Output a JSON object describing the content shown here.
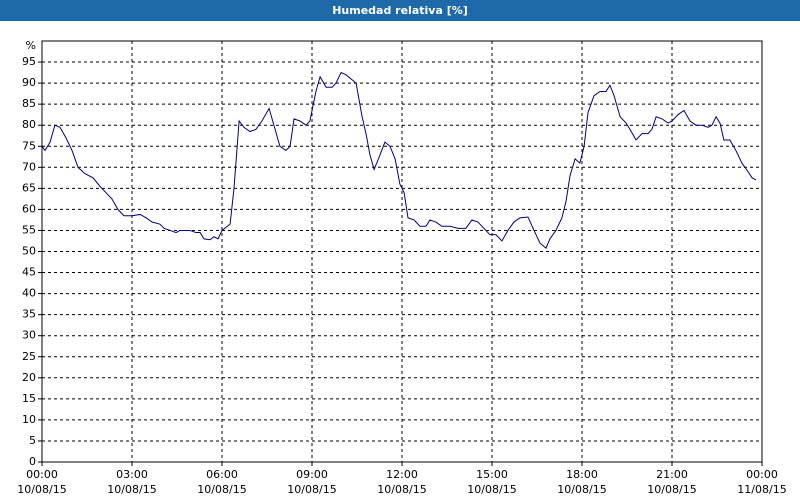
{
  "chart_data": {
    "type": "line",
    "title": "Humedad relativa [%]",
    "y_unit": "%",
    "xlim": [
      0,
      24
    ],
    "ylim": [
      0,
      100
    ],
    "xticks": [
      {
        "value": 0,
        "label": "00:00"
      },
      {
        "value": 3,
        "label": "03:00"
      },
      {
        "value": 6,
        "label": "06:00"
      },
      {
        "value": 9,
        "label": "09:00"
      },
      {
        "value": 12,
        "label": "12:00"
      },
      {
        "value": 15,
        "label": "15:00"
      },
      {
        "value": 18,
        "label": "18:00"
      },
      {
        "value": 21,
        "label": "21:00"
      },
      {
        "value": 24,
        "label": "00:00"
      }
    ],
    "xtick_dates": [
      "10/08/15",
      "10/08/15",
      "10/08/15",
      "10/08/15",
      "10/08/15",
      "10/08/15",
      "10/08/15",
      "10/08/15",
      "11/08/15"
    ],
    "yticks": [
      0,
      5,
      10,
      15,
      20,
      25,
      30,
      35,
      40,
      45,
      50,
      55,
      60,
      65,
      70,
      75,
      80,
      85,
      90,
      95
    ],
    "grid": true,
    "series": [
      {
        "name": "Humedad relativa",
        "color": "#000080",
        "x": [
          0,
          0.1,
          0.27,
          0.43,
          0.6,
          0.8,
          1.0,
          1.2,
          1.43,
          1.7,
          1.93,
          2.13,
          2.33,
          2.53,
          2.73,
          3.0,
          3.27,
          3.47,
          3.67,
          3.93,
          4.07,
          4.27,
          4.47,
          4.6,
          4.93,
          5.13,
          5.27,
          5.4,
          5.6,
          5.73,
          5.87,
          6.0,
          6.27,
          6.4,
          6.57,
          6.73,
          6.93,
          7.13,
          7.33,
          7.57,
          7.73,
          7.93,
          8.13,
          8.27,
          8.4,
          8.6,
          8.8,
          8.93,
          9.13,
          9.27,
          9.47,
          9.67,
          9.8,
          9.97,
          10.13,
          10.3,
          10.47,
          10.67,
          10.8,
          10.93,
          11.07,
          11.27,
          11.43,
          11.6,
          11.77,
          11.93,
          12.07,
          12.2,
          12.4,
          12.6,
          12.8,
          12.93,
          13.13,
          13.33,
          13.6,
          13.87,
          14.13,
          14.33,
          14.53,
          14.73,
          14.93,
          15.13,
          15.33,
          15.53,
          15.73,
          15.93,
          16.2,
          16.4,
          16.6,
          16.8,
          16.93,
          17.13,
          17.33,
          17.47,
          17.6,
          17.77,
          17.93,
          18.07,
          18.2,
          18.4,
          18.6,
          18.8,
          18.93,
          19.07,
          19.27,
          19.47,
          19.6,
          19.8,
          20.0,
          20.2,
          20.33,
          20.47,
          20.67,
          20.87,
          21.0,
          21.2,
          21.4,
          21.6,
          21.8,
          22.0,
          22.2,
          22.33,
          22.47,
          22.6,
          22.73,
          22.93,
          23.13,
          23.33,
          23.53,
          23.67,
          23.8
        ],
        "values": [
          75,
          74,
          76,
          80,
          79.5,
          77,
          74,
          70,
          68.5,
          67.5,
          65.5,
          64,
          62.5,
          60,
          58.5,
          58.5,
          58.8,
          58,
          57,
          56.5,
          55.5,
          55,
          54.5,
          55,
          55,
          54.5,
          54.5,
          53,
          52.8,
          53.5,
          53,
          55,
          56.5,
          65,
          81,
          79.5,
          78.5,
          79,
          81,
          84,
          80,
          75,
          74,
          75,
          81.5,
          81,
          80,
          81,
          88,
          91.5,
          89,
          89,
          90,
          92.5,
          92,
          91,
          90,
          82,
          78,
          73,
          69.5,
          73,
          76,
          75,
          72,
          66,
          64,
          58,
          57.5,
          56,
          56,
          57.5,
          57,
          56,
          56,
          55.5,
          55.5,
          57.5,
          57,
          55.5,
          54,
          54,
          52.5,
          55,
          57,
          58,
          58.2,
          55,
          52,
          50.8,
          53,
          55,
          58,
          62,
          68,
          72,
          71,
          75,
          83,
          87,
          88,
          88,
          89.5,
          87,
          82,
          80.5,
          79,
          76.5,
          78,
          78,
          79,
          82,
          81.5,
          80.5,
          81,
          82.5,
          83.5,
          81,
          80,
          80,
          79.5,
          80,
          82,
          80.5,
          76.5,
          76.5,
          74,
          71,
          69,
          67.5,
          67
        ]
      }
    ]
  }
}
